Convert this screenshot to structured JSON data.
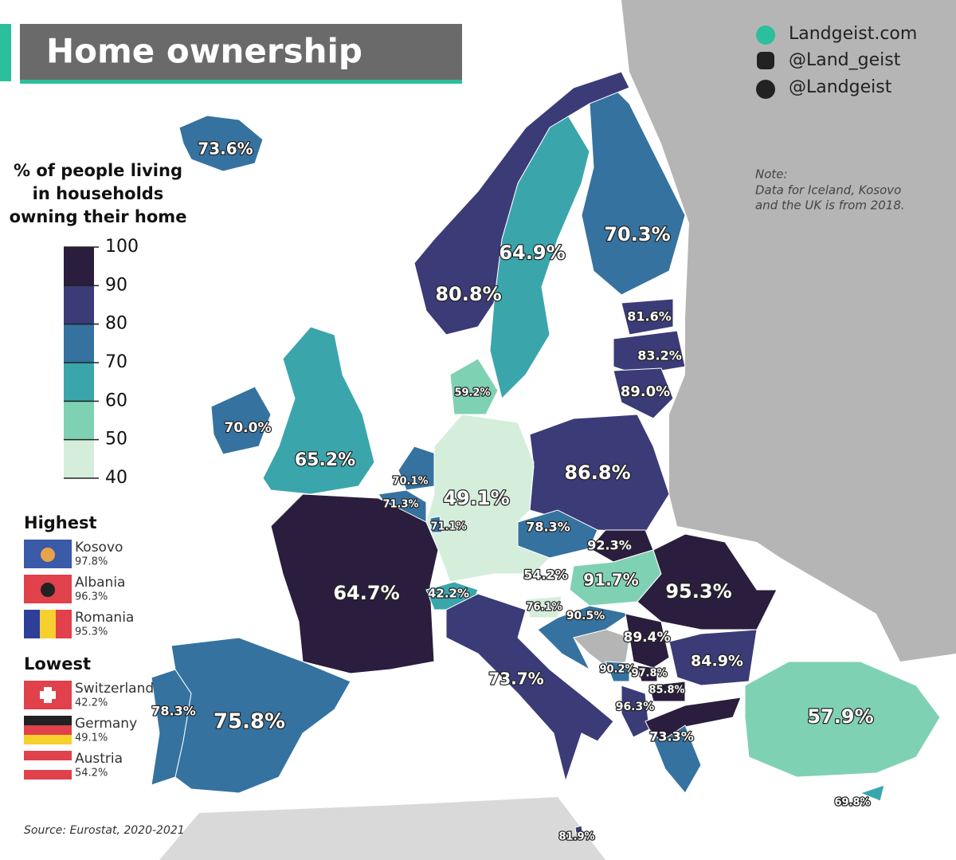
{
  "title": "Home ownership",
  "social": [
    "Landgeist.com",
    "@Land_geist",
    "@Landgeist"
  ],
  "note": [
    "Note:",
    "Data for Iceland, Kosovo",
    "and the UK is from 2018."
  ],
  "legend": {
    "title": [
      "% of people living",
      "in households",
      "owning their home"
    ],
    "ticks": [
      100,
      90,
      80,
      70,
      60,
      50,
      40
    ],
    "colors": [
      "#2b1d3d",
      "#3b3b78",
      "#3572a0",
      "#3aa6ac",
      "#7fd1b4",
      "#d4eedb"
    ]
  },
  "regions": {
    "values": [
      73.6,
      64.9,
      70.3,
      80.8,
      81.6,
      83.2,
      89.0,
      59.2,
      70.0,
      65.2,
      86.8,
      70.1,
      71.3,
      49.1,
      71.1,
      78.3,
      92.3,
      54.2,
      91.7,
      95.3,
      64.7,
      42.2,
      76.1,
      90.5,
      89.4,
      84.9,
      73.7,
      90.2,
      97.8,
      85.8,
      96.3,
      57.9,
      73.3,
      78.3,
      75.8,
      69.8,
      81.9
    ],
    "value_labels": [
      "73.6%",
      "64.9%",
      "70.3%",
      "80.8%",
      "81.6%",
      "83.2%",
      "89.0%",
      "59.2%",
      "70.0%",
      "65.2%",
      "86.8%",
      "70.1%",
      "71.3%",
      "49.1%",
      "71.1%",
      "78.3%",
      "92.3%",
      "54.2%",
      "91.7%",
      "95.3%",
      "64.7%",
      "42.2%",
      "76.1%",
      "90.5%",
      "89.4%",
      "84.9%",
      "73.7%",
      "90.2%",
      "97.8%",
      "85.8%",
      "96.3%",
      "57.9%",
      "73.3%",
      "78.3%",
      "75.8%",
      "69.8%",
      "81.9%"
    ]
  },
  "highest": {
    "title": "Highest",
    "entries": [
      {
        "name": "Kosovo",
        "value": "97.8%"
      },
      {
        "name": "Albania",
        "value": "96.3%"
      },
      {
        "name": "Romania",
        "value": "95.3%"
      }
    ]
  },
  "lowest": {
    "title": "Lowest",
    "entries": [
      {
        "name": "Switzerland",
        "value": "42.2%"
      },
      {
        "name": "Germany",
        "value": "49.1%"
      },
      {
        "name": "Austria",
        "value": "54.2%"
      }
    ]
  },
  "source": "Source: Eurostat, 2020-2021"
}
